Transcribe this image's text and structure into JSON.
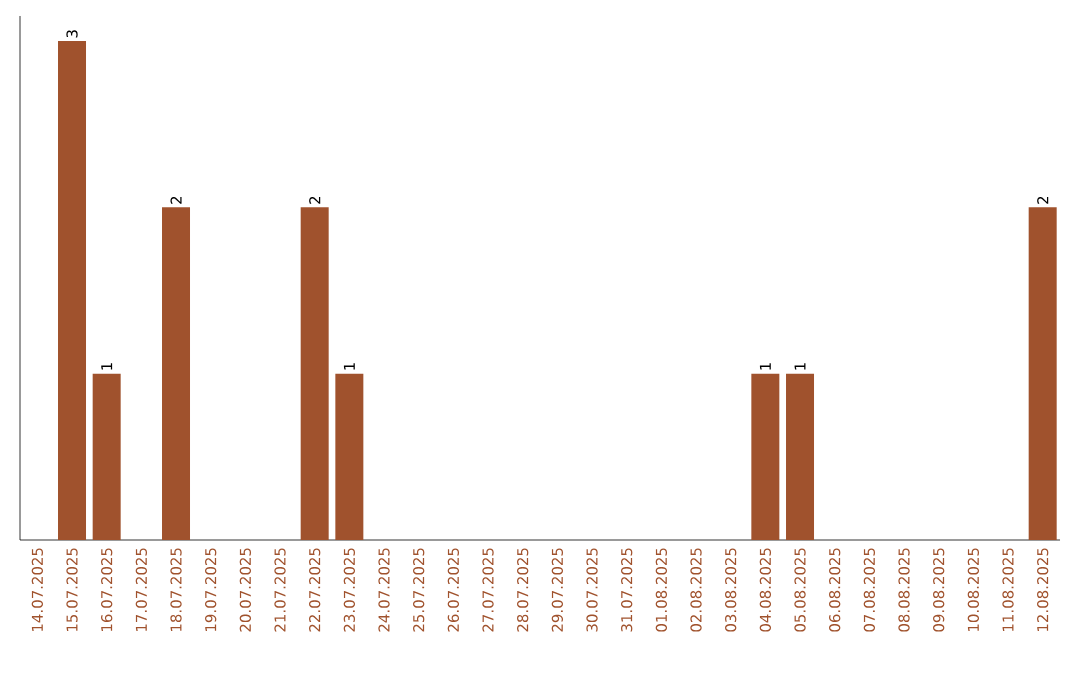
{
  "chart_data": {
    "type": "bar",
    "color": "#a0522d",
    "categories": [
      "14.07.2025",
      "15.07.2025",
      "16.07.2025",
      "17.07.2025",
      "18.07.2025",
      "19.07.2025",
      "20.07.2025",
      "21.07.2025",
      "22.07.2025",
      "23.07.2025",
      "24.07.2025",
      "25.07.2025",
      "26.07.2025",
      "27.07.2025",
      "28.07.2025",
      "29.07.2025",
      "30.07.2025",
      "31.07.2025",
      "01.08.2025",
      "02.08.2025",
      "03.08.2025",
      "04.08.2025",
      "05.08.2025",
      "06.08.2025",
      "07.08.2025",
      "08.08.2025",
      "09.08.2025",
      "10.08.2025",
      "11.08.2025",
      "12.08.2025"
    ],
    "values": [
      0,
      3,
      1,
      0,
      2,
      0,
      0,
      0,
      2,
      1,
      0,
      0,
      0,
      0,
      0,
      0,
      0,
      0,
      0,
      0,
      0,
      1,
      1,
      0,
      0,
      0,
      0,
      0,
      0,
      2
    ],
    "value_labels": [
      null,
      "3",
      "1",
      null,
      "2",
      null,
      null,
      null,
      "2",
      "1",
      null,
      null,
      null,
      null,
      null,
      null,
      null,
      null,
      null,
      null,
      null,
      "1",
      "1",
      null,
      null,
      null,
      null,
      null,
      null,
      "2"
    ],
    "data_labels": false
  }
}
